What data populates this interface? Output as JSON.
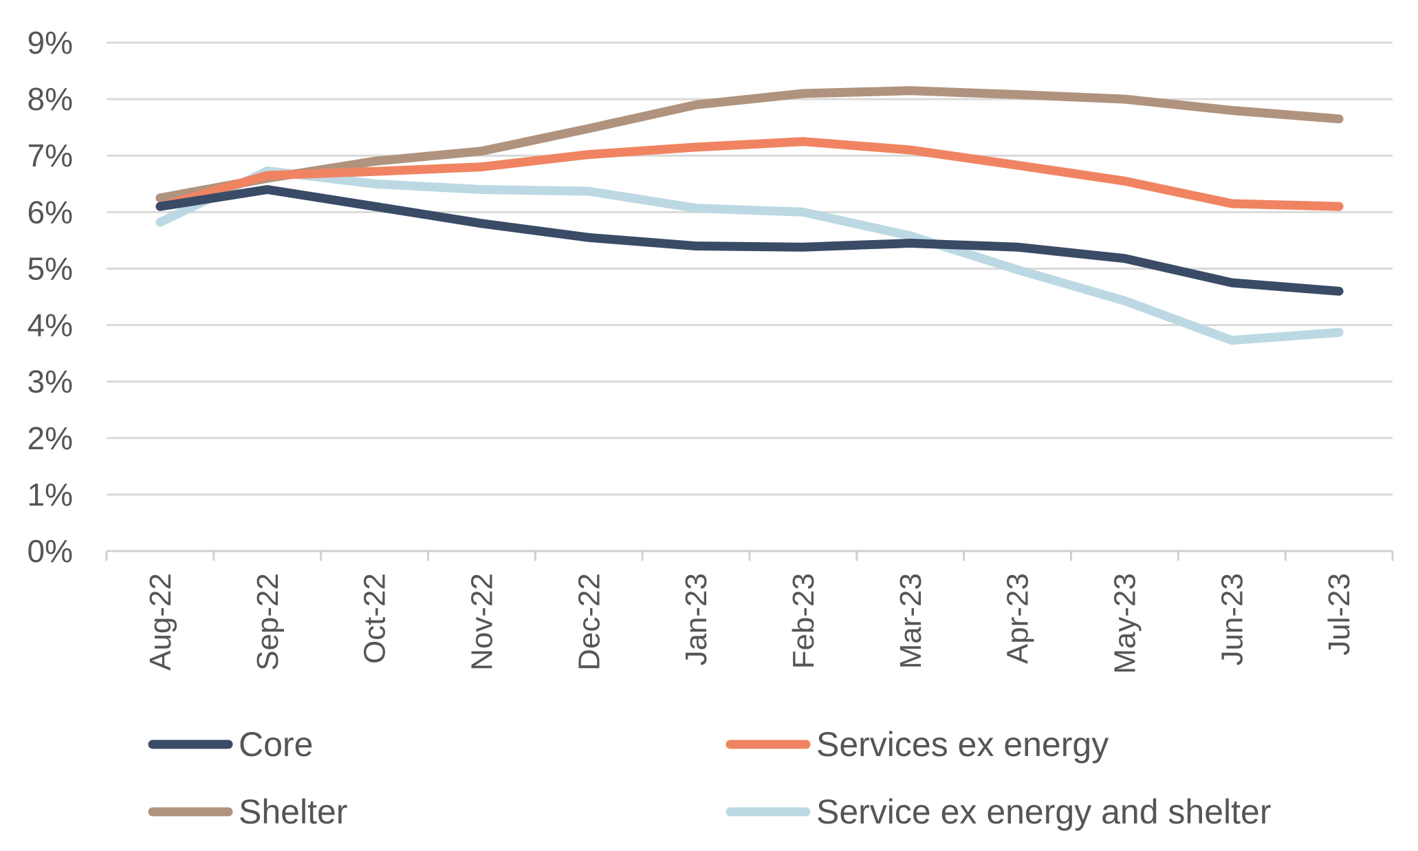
{
  "chart_data": {
    "type": "line",
    "title": "",
    "xlabel": "",
    "ylabel": "",
    "categories": [
      "Aug-22",
      "Sep-22",
      "Oct-22",
      "Nov-22",
      "Dec-22",
      "Jan-23",
      "Feb-23",
      "Mar-23",
      "Apr-23",
      "May-23",
      "Jun-23",
      "Jul-23"
    ],
    "y_ticks": [
      "0%",
      "1%",
      "2%",
      "3%",
      "4%",
      "5%",
      "6%",
      "7%",
      "8%",
      "9%"
    ],
    "ylim": [
      0,
      9
    ],
    "grid": true,
    "legend_position": "bottom",
    "series": [
      {
        "name": "Core",
        "color": "#3a4b66",
        "values": [
          6.1,
          6.4,
          6.1,
          5.8,
          5.55,
          5.4,
          5.38,
          5.45,
          5.38,
          5.18,
          4.75,
          4.6
        ]
      },
      {
        "name": "Services ex energy",
        "color": "#f08462",
        "values": [
          6.1,
          6.65,
          6.72,
          6.8,
          7.02,
          7.15,
          7.25,
          7.1,
          6.83,
          6.55,
          6.15,
          6.1
        ]
      },
      {
        "name": "Shelter",
        "color": "#b0937e",
        "values": [
          6.25,
          6.6,
          6.9,
          7.08,
          7.48,
          7.9,
          8.1,
          8.15,
          8.08,
          8.0,
          7.8,
          7.65
        ]
      },
      {
        "name": "Service ex energy and shelter",
        "color": "#bcd9e3",
        "values": [
          5.82,
          6.73,
          6.5,
          6.4,
          6.37,
          6.07,
          6.0,
          5.58,
          4.98,
          4.43,
          3.73,
          3.87
        ]
      }
    ]
  }
}
